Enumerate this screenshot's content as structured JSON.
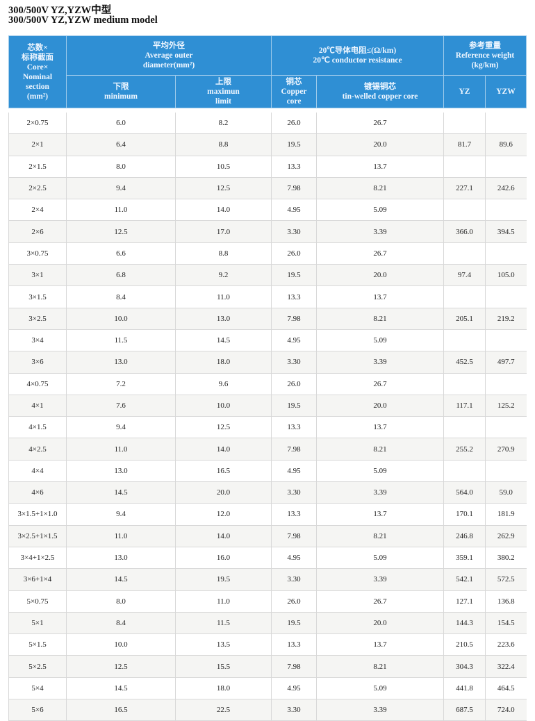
{
  "title_cn": "300/500V YZ,YZW中型",
  "title_en": "300/500V YZ,YZW medium model",
  "header": {
    "core": [
      "芯数×",
      "标称截面",
      "Core×",
      "Nominal",
      "section",
      "(mm²)"
    ],
    "diameter": [
      "平均外径",
      "Average outer",
      "diameter(mm²)"
    ],
    "min": [
      "下限",
      "minimum"
    ],
    "max": [
      "上限",
      "maximun",
      "limit"
    ],
    "resistance": [
      "20℃导体电阻≤(Ω/km)",
      "20℃ conductor resistance"
    ],
    "copper": [
      "铜芯",
      "Copper",
      "core"
    ],
    "tinned": [
      "镀锡铜芯",
      "tin-welled copper core"
    ],
    "weight": [
      "参考重量",
      "Reference weight",
      "(kg/km)"
    ],
    "yz": "YZ",
    "yzw": "YZW"
  },
  "colors": {
    "header_bg": "#2f8fd4"
  },
  "rows": [
    [
      "2×0.75",
      "6.0",
      "8.2",
      "26.0",
      "26.7",
      "",
      ""
    ],
    [
      "2×1",
      "6.4",
      "8.8",
      "19.5",
      "20.0",
      "81.7",
      "89.6"
    ],
    [
      "2×1.5",
      "8.0",
      "10.5",
      "13.3",
      "13.7",
      "",
      ""
    ],
    [
      "2×2.5",
      "9.4",
      "12.5",
      "7.98",
      "8.21",
      "227.1",
      "242.6"
    ],
    [
      "2×4",
      "11.0",
      "14.0",
      "4.95",
      "5.09",
      "",
      ""
    ],
    [
      "2×6",
      "12.5",
      "17.0",
      "3.30",
      "3.39",
      "366.0",
      "394.5"
    ],
    [
      "3×0.75",
      "6.6",
      "8.8",
      "26.0",
      "26.7",
      "",
      ""
    ],
    [
      "3×1",
      "6.8",
      "9.2",
      "19.5",
      "20.0",
      "97.4",
      "105.0"
    ],
    [
      "3×1.5",
      "8.4",
      "11.0",
      "13.3",
      "13.7",
      "",
      ""
    ],
    [
      "3×2.5",
      "10.0",
      "13.0",
      "7.98",
      "8.21",
      "205.1",
      "219.2"
    ],
    [
      "3×4",
      "11.5",
      "14.5",
      "4.95",
      "5.09",
      "",
      ""
    ],
    [
      "3×6",
      "13.0",
      "18.0",
      "3.30",
      "3.39",
      "452.5",
      "497.7"
    ],
    [
      "4×0.75",
      "7.2",
      "9.6",
      "26.0",
      "26.7",
      "",
      ""
    ],
    [
      "4×1",
      "7.6",
      "10.0",
      "19.5",
      "20.0",
      "117.1",
      "125.2"
    ],
    [
      "4×1.5",
      "9.4",
      "12.5",
      "13.3",
      "13.7",
      "",
      ""
    ],
    [
      "4×2.5",
      "11.0",
      "14.0",
      "7.98",
      "8.21",
      "255.2",
      "270.9"
    ],
    [
      "4×4",
      "13.0",
      "16.5",
      "4.95",
      "5.09",
      "",
      ""
    ],
    [
      "4×6",
      "14.5",
      "20.0",
      "3.30",
      "3.39",
      "564.0",
      "59.0"
    ],
    [
      "3×1.5+1×1.0",
      "9.4",
      "12.0",
      "13.3",
      "13.7",
      "170.1",
      "181.9"
    ],
    [
      "3×2.5+1×1.5",
      "11.0",
      "14.0",
      "7.98",
      "8.21",
      "246.8",
      "262.9"
    ],
    [
      "3×4+1×2.5",
      "13.0",
      "16.0",
      "4.95",
      "5.09",
      "359.1",
      "380.2"
    ],
    [
      "3×6+1×4",
      "14.5",
      "19.5",
      "3.30",
      "3.39",
      "542.1",
      "572.5"
    ],
    [
      "5×0.75",
      "8.0",
      "11.0",
      "26.0",
      "26.7",
      "127.1",
      "136.8"
    ],
    [
      "5×1",
      "8.4",
      "11.5",
      "19.5",
      "20.0",
      "144.3",
      "154.5"
    ],
    [
      "5×1.5",
      "10.0",
      "13.5",
      "13.3",
      "13.7",
      "210.5",
      "223.6"
    ],
    [
      "5×2.5",
      "12.5",
      "15.5",
      "7.98",
      "8.21",
      "304.3",
      "322.4"
    ],
    [
      "5×4",
      "14.5",
      "18.0",
      "4.95",
      "5.09",
      "441.8",
      "464.5"
    ],
    [
      "5×6",
      "16.5",
      "22.5",
      "3.30",
      "3.39",
      "687.5",
      "724.0"
    ]
  ]
}
